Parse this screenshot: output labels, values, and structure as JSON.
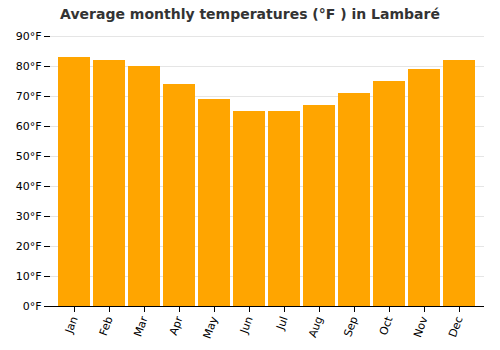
{
  "chart_data": {
    "type": "bar",
    "title": "Average monthly temperatures (°F ) in Lambaré",
    "categories": [
      "Jan",
      "Feb",
      "Mar",
      "Apr",
      "May",
      "Jun",
      "Jul",
      "Aug",
      "Sep",
      "Oct",
      "Nov",
      "Dec"
    ],
    "values": [
      83,
      82,
      80,
      74,
      69,
      65,
      65,
      67,
      71,
      75,
      79,
      82
    ],
    "color": "#FFA500",
    "ylim": [
      0,
      90
    ],
    "yticks": [
      {
        "value": 0,
        "label": "0°F"
      },
      {
        "value": 10,
        "label": "10°F"
      },
      {
        "value": 20,
        "label": "20°F"
      },
      {
        "value": 30,
        "label": "30°F"
      },
      {
        "value": 40,
        "label": "40°F"
      },
      {
        "value": 50,
        "label": "50°F"
      },
      {
        "value": 60,
        "label": "60°F"
      },
      {
        "value": 70,
        "label": "70°F"
      },
      {
        "value": 80,
        "label": "80°F"
      },
      {
        "value": 90,
        "label": "90°F"
      }
    ],
    "grid": true
  }
}
